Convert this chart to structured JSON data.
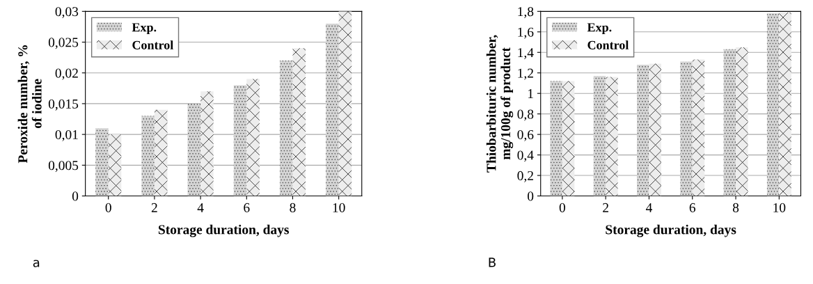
{
  "chart_data": [
    {
      "type": "bar",
      "categories": [
        "0",
        "2",
        "4",
        "6",
        "8",
        "10"
      ],
      "xlabel": "Storage duration, days",
      "ylabel": "Peroxide number, %\nof iodine",
      "ylim": [
        0,
        0.03
      ],
      "yticks": [
        0,
        {
          "value": 0.005,
          "label": "0,005"
        },
        {
          "value": 0.01,
          "label": "0,01"
        },
        {
          "value": 0.015,
          "label": "0,015"
        },
        {
          "value": 0.02,
          "label": "0,02"
        },
        {
          "value": 0.025,
          "label": "0,025"
        },
        {
          "value": 0.03,
          "label": "0,03"
        }
      ],
      "grid": "y",
      "legend": "top left",
      "annotations": [
        "a"
      ],
      "series": [
        {
          "name": "Exp.",
          "color": "#d4d4d4",
          "values": [
            0.011,
            0.013,
            0.015,
            0.018,
            0.022,
            0.028
          ]
        },
        {
          "name": "Control",
          "color": "#ededed",
          "values": [
            0.01,
            0.014,
            0.017,
            0.019,
            0.024,
            0.03
          ]
        }
      ]
    },
    {
      "type": "bar",
      "categories": [
        "0",
        "2",
        "4",
        "6",
        "8",
        "10"
      ],
      "xlabel": "Storage duration, days",
      "ylabel": "Thiobarbituric number,\nmg/100g of product",
      "ylim": [
        0,
        1.8
      ],
      "yticks": [
        0,
        {
          "value": 0.2,
          "label": "0,2"
        },
        {
          "value": 0.4,
          "label": "0,4"
        },
        {
          "value": 0.6,
          "label": "0,6"
        },
        {
          "value": 0.8,
          "label": "0,8"
        },
        1,
        {
          "value": 1.2,
          "label": "1,2"
        },
        {
          "value": 1.4,
          "label": "1,4"
        },
        {
          "value": 1.6,
          "label": "1,6"
        },
        {
          "value": 1.8,
          "label": "1,8"
        }
      ],
      "grid": "y",
      "legend": "top left",
      "annotations": [
        "B"
      ],
      "series": [
        {
          "name": "Exp.",
          "color": "#d4d4d4",
          "values": [
            1.12,
            1.17,
            1.28,
            1.31,
            1.43,
            1.78
          ]
        },
        {
          "name": "Control",
          "color": "#ededed",
          "values": [
            1.12,
            1.16,
            1.29,
            1.33,
            1.45,
            1.79
          ]
        }
      ]
    }
  ]
}
